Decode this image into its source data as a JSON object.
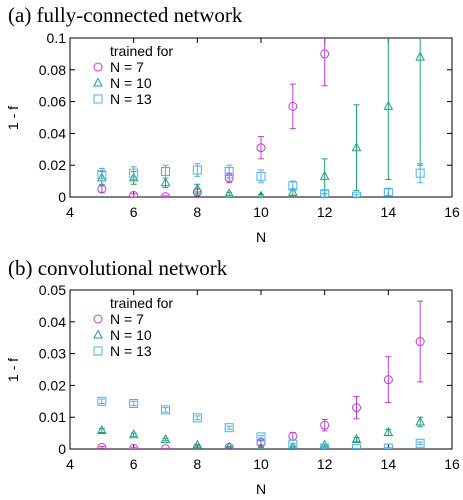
{
  "chart_data": [
    {
      "type": "scatter",
      "title": "(a) fully-connected network",
      "xlabel": "N",
      "ylabel": "1 - f",
      "xlim": [
        4,
        16
      ],
      "ylim": [
        0,
        0.1
      ],
      "xticks": [
        "4",
        "6",
        "8",
        "10",
        "12",
        "14",
        "16"
      ],
      "yticks": [
        "0",
        "0.02",
        "0.04",
        "0.06",
        "0.08",
        "0.1"
      ],
      "legend_title": "trained for",
      "legend_placement": "top-left",
      "grid": false,
      "series": [
        {
          "name": "N = 7",
          "marker": "circle",
          "color": "#c040d0",
          "points": [
            {
              "x": 5,
              "y": 0.005,
              "err": 0.002
            },
            {
              "x": 6,
              "y": 0.001,
              "err": 0.001
            },
            {
              "x": 7,
              "y": 0.0002,
              "err": 0.0005
            },
            {
              "x": 8,
              "y": 0.003,
              "err": 0.002
            },
            {
              "x": 9,
              "y": 0.012,
              "err": 0.003
            },
            {
              "x": 10,
              "y": 0.031,
              "err": 0.007
            },
            {
              "x": 11,
              "y": 0.057,
              "err": 0.014
            },
            {
              "x": 12,
              "y": 0.09,
              "err": 0.02
            }
          ]
        },
        {
          "name": "N = 10",
          "marker": "triangle",
          "color": "#20a080",
          "points": [
            {
              "x": 5,
              "y": 0.012,
              "err": 0.004
            },
            {
              "x": 6,
              "y": 0.012,
              "err": 0.004
            },
            {
              "x": 7,
              "y": 0.009,
              "err": 0.003
            },
            {
              "x": 8,
              "y": 0.005,
              "err": 0.003
            },
            {
              "x": 9,
              "y": 0.002,
              "err": 0.001
            },
            {
              "x": 10,
              "y": 0.0005,
              "err": 0.001
            },
            {
              "x": 11,
              "y": 0.003,
              "err": 0.002
            },
            {
              "x": 12,
              "y": 0.013,
              "err": 0.011
            },
            {
              "x": 13,
              "y": 0.031,
              "err": 0.027
            },
            {
              "x": 14,
              "y": 0.057,
              "err": 0.046
            },
            {
              "x": 15,
              "y": 0.088,
              "err": 0.068
            }
          ]
        },
        {
          "name": "N = 13",
          "marker": "square",
          "color": "#50b0e8",
          "points": [
            {
              "x": 5,
              "y": 0.014,
              "err": 0.004
            },
            {
              "x": 6,
              "y": 0.015,
              "err": 0.004
            },
            {
              "x": 7,
              "y": 0.016,
              "err": 0.004
            },
            {
              "x": 8,
              "y": 0.017,
              "err": 0.004
            },
            {
              "x": 9,
              "y": 0.016,
              "err": 0.004
            },
            {
              "x": 10,
              "y": 0.013,
              "err": 0.004
            },
            {
              "x": 11,
              "y": 0.007,
              "err": 0.003
            },
            {
              "x": 12,
              "y": 0.002,
              "err": 0.002
            },
            {
              "x": 13,
              "y": 0.0005,
              "err": 0.001
            },
            {
              "x": 14,
              "y": 0.003,
              "err": 0.002
            },
            {
              "x": 15,
              "y": 0.015,
              "err": 0.006
            }
          ]
        }
      ]
    },
    {
      "type": "scatter",
      "title": "(b) convolutional network",
      "xlabel": "N",
      "ylabel": "1 - f",
      "xlim": [
        4,
        16
      ],
      "ylim": [
        0,
        0.05
      ],
      "xticks": [
        "4",
        "6",
        "8",
        "10",
        "12",
        "14",
        "16"
      ],
      "yticks": [
        "0",
        "0.01",
        "0.02",
        "0.03",
        "0.04",
        "0.05"
      ],
      "legend_title": "trained for",
      "legend_placement": "top-left",
      "grid": false,
      "series": [
        {
          "name": "N = 7",
          "marker": "circle",
          "color": "#c040d0",
          "points": [
            {
              "x": 5,
              "y": 0.0005,
              "err": 0.0003
            },
            {
              "x": 6,
              "y": 0.0002,
              "err": 0.0002
            },
            {
              "x": 7,
              "y": 0.0001,
              "err": 0.0001
            },
            {
              "x": 8,
              "y": 0.0002,
              "err": 0.0002
            },
            {
              "x": 9,
              "y": 0.0005,
              "err": 0.0003
            },
            {
              "x": 10,
              "y": 0.002,
              "err": 0.0008
            },
            {
              "x": 11,
              "y": 0.004,
              "err": 0.0012
            },
            {
              "x": 12,
              "y": 0.0075,
              "err": 0.0018
            },
            {
              "x": 13,
              "y": 0.013,
              "err": 0.0035
            },
            {
              "x": 14,
              "y": 0.0218,
              "err": 0.0072
            },
            {
              "x": 15,
              "y": 0.0338,
              "err": 0.0127
            }
          ]
        },
        {
          "name": "N = 10",
          "marker": "triangle",
          "color": "#20a080",
          "points": [
            {
              "x": 5,
              "y": 0.0058,
              "err": 0.0006
            },
            {
              "x": 6,
              "y": 0.0045,
              "err": 0.0005
            },
            {
              "x": 7,
              "y": 0.003,
              "err": 0.0004
            },
            {
              "x": 8,
              "y": 0.0012,
              "err": 0.0003
            },
            {
              "x": 9,
              "y": 0.0006,
              "err": 0.0002
            },
            {
              "x": 10,
              "y": 0.0003,
              "err": 0.0002
            },
            {
              "x": 11,
              "y": 0.0005,
              "err": 0.0002
            },
            {
              "x": 12,
              "y": 0.0012,
              "err": 0.0003
            },
            {
              "x": 13,
              "y": 0.003,
              "err": 0.0006
            },
            {
              "x": 14,
              "y": 0.0052,
              "err": 0.001
            },
            {
              "x": 15,
              "y": 0.0085,
              "err": 0.0015
            }
          ]
        },
        {
          "name": "N = 13",
          "marker": "square",
          "color": "#50b0e8",
          "points": [
            {
              "x": 5,
              "y": 0.015,
              "err": 0.0007
            },
            {
              "x": 6,
              "y": 0.0143,
              "err": 0.0007
            },
            {
              "x": 7,
              "y": 0.0123,
              "err": 0.0007
            },
            {
              "x": 8,
              "y": 0.0098,
              "err": 0.0006
            },
            {
              "x": 9,
              "y": 0.0067,
              "err": 0.0005
            },
            {
              "x": 10,
              "y": 0.0038,
              "err": 0.0004
            },
            {
              "x": 11,
              "y": 0.0015,
              "err": 0.0003
            },
            {
              "x": 12,
              "y": 0.0003,
              "err": 0.0002
            },
            {
              "x": 13,
              "y": 0.0001,
              "err": 0.0001
            },
            {
              "x": 14,
              "y": 0.0003,
              "err": 0.0002
            },
            {
              "x": 15,
              "y": 0.0018,
              "err": 0.0004
            }
          ]
        }
      ]
    }
  ]
}
